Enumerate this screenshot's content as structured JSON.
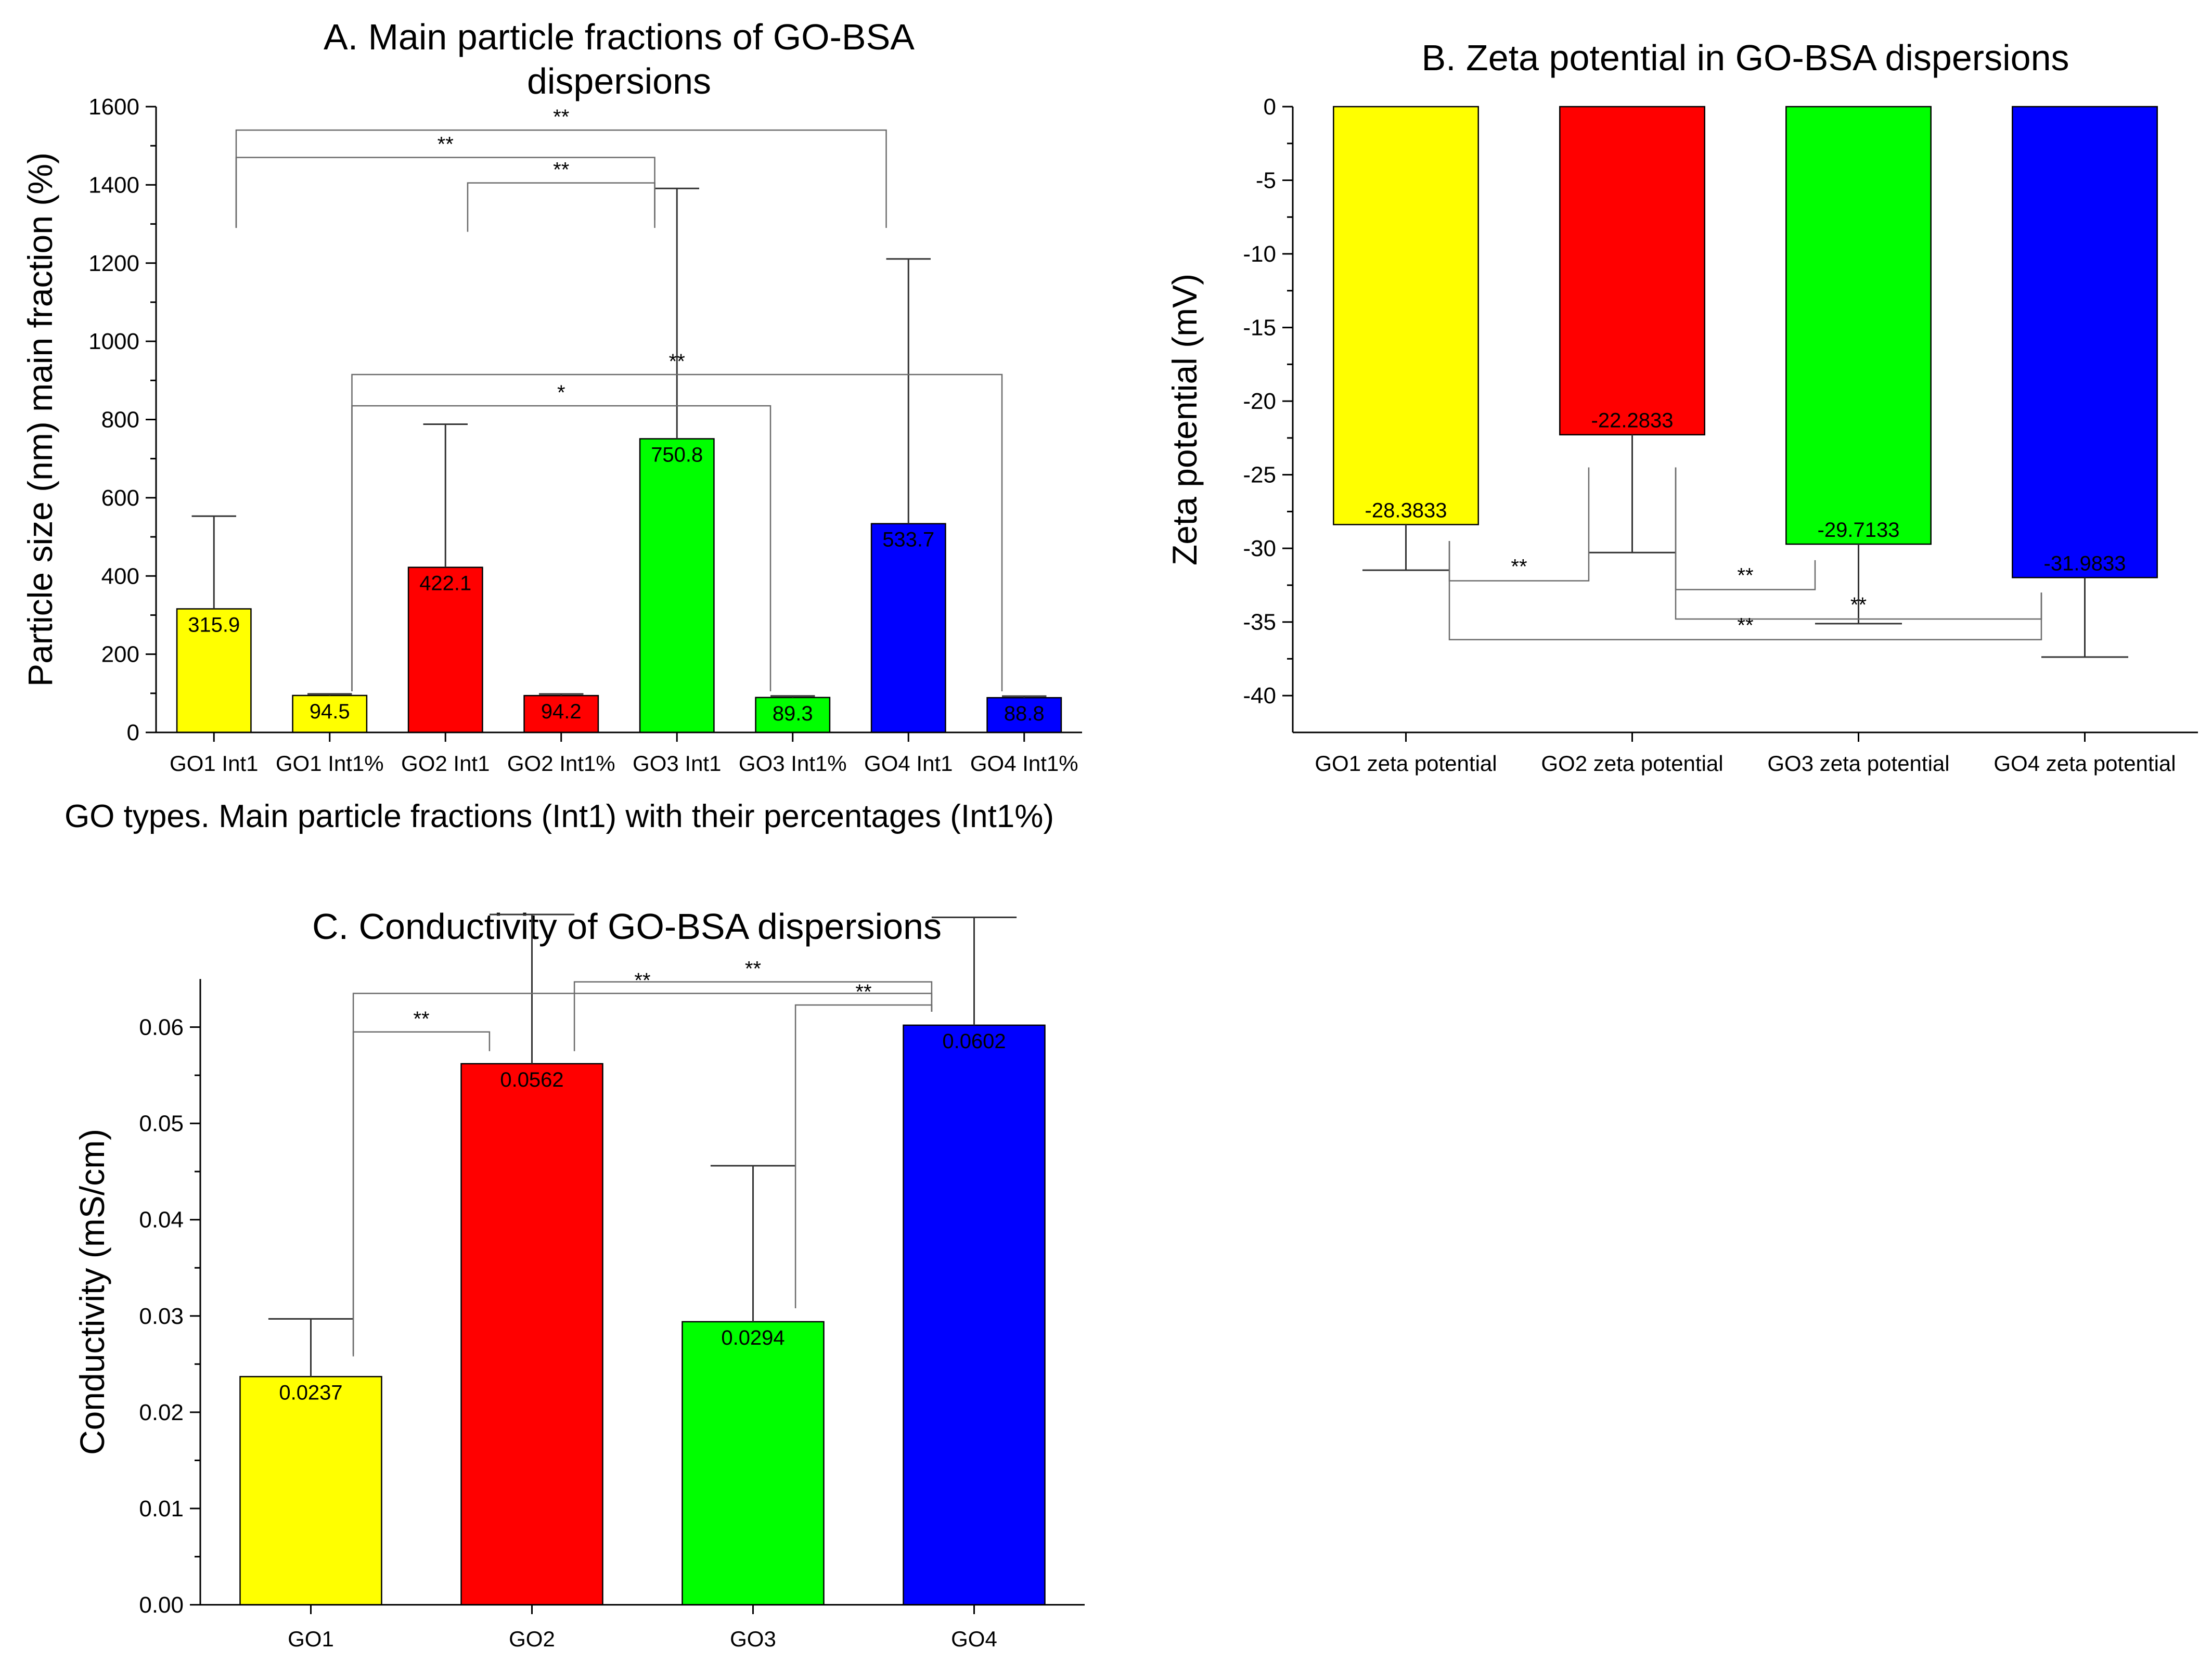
{
  "chart_data": [
    {
      "id": "A",
      "type": "bar",
      "title": "A. Main particle fractions of GO-BSA dispersions",
      "title_lines": [
        "A. Main particle fractions of GO-BSA",
        "dispersions"
      ],
      "ylabel": "Particle size (nm) main fraction (%)",
      "xlabel": "GO types. Main particle fractions (Int1) with their percentages (Int1%)",
      "ylim": [
        0,
        1600
      ],
      "yticks": [
        0,
        200,
        400,
        600,
        800,
        1000,
        1200,
        1400,
        1600
      ],
      "ytick_labels": [
        "0",
        "200",
        "400",
        "600",
        "800",
        "1000",
        "1200",
        "1400",
        "1600"
      ],
      "categories": [
        "GO1 Int1",
        "GO1 Int1%",
        "GO2 Int1",
        "GO2 Int1%",
        "GO3 Int1",
        "GO3 Int1%",
        "GO4 Int1",
        "GO4 Int1%"
      ],
      "values": [
        315.9,
        94.5,
        422.1,
        94.2,
        750.8,
        89.3,
        533.7,
        88.8
      ],
      "value_labels": [
        "315.9",
        "94.5",
        "422.1",
        "94.2",
        "750.8",
        "89.3",
        "533.7",
        "88.8"
      ],
      "errors": [
        237,
        4,
        366,
        4,
        640,
        4,
        677,
        4
      ],
      "colors": [
        "#ffff00",
        "#ffff00",
        "#ff0000",
        "#ff0000",
        "#00ff00",
        "#00ff00",
        "#0000ff",
        "#0000ff"
      ],
      "significance": [
        {
          "from": 0,
          "to": 6,
          "label": "**",
          "level": 1540,
          "from_end": 1290,
          "to_end": 1290
        },
        {
          "from": 0,
          "to": 4,
          "label": "**",
          "level": 1470,
          "from_end": 1290,
          "to_end": 1310
        },
        {
          "from": 2,
          "to": 4,
          "label": "**",
          "level": 1405,
          "from_end": 1280,
          "to_end": 1290
        },
        {
          "from": 1,
          "to": 7,
          "label": "**",
          "level": 915,
          "from_end": 105,
          "to_end": 105
        },
        {
          "from": 1,
          "to": 5,
          "label": "*",
          "level": 835,
          "from_end": 105,
          "to_end": 105
        }
      ]
    },
    {
      "id": "B",
      "type": "bar",
      "title": "B. Zeta potential in GO-BSA dispersions",
      "ylabel": "Zeta potential (mV)",
      "xlabel": "",
      "ylim": [
        -42.5,
        0
      ],
      "yticks": [
        0,
        -5,
        -10,
        -15,
        -20,
        -25,
        -30,
        -35,
        -40
      ],
      "ytick_labels": [
        "0",
        "-5",
        "-10",
        "-15",
        "-20",
        "-25",
        "-30",
        "-35",
        "-40"
      ],
      "categories": [
        "GO1 zeta potential",
        "GO2 zeta potential",
        "GO3 zeta potential",
        "GO4 zeta potential"
      ],
      "values": [
        -28.3833,
        -22.2833,
        -29.7133,
        -31.9833
      ],
      "value_labels": [
        "-28.3833",
        "-22.2833",
        "-29.7133",
        "-31.9833"
      ],
      "errors": [
        3.1,
        8.0,
        5.4,
        5.4
      ],
      "colors": [
        "#ffff00",
        "#ff0000",
        "#00ff00",
        "#0000ff"
      ],
      "significance": [
        {
          "from": 0,
          "to": 1,
          "label": "**",
          "level": -32.2,
          "from_end": -29.5,
          "to_end": -24.5
        },
        {
          "from": 1,
          "to": 2,
          "label": "**",
          "level": -32.8,
          "from_end": -24.5,
          "to_end": -30.8
        },
        {
          "from": 1,
          "to": 3,
          "label": "**",
          "level": -34.8,
          "from_end": -24.5,
          "to_end": -33.0
        },
        {
          "from": 0,
          "to": 3,
          "label": "**",
          "level": -36.2,
          "from_end": -29.5,
          "to_end": -33.0
        }
      ]
    },
    {
      "id": "C",
      "type": "bar",
      "title": "C. Conductivity of GO-BSA dispersions",
      "ylabel": "Conductivity (mS/cm)",
      "xlabel": "",
      "ylim": [
        0,
        0.065
      ],
      "yticks": [
        0,
        0.01,
        0.02,
        0.03,
        0.04,
        0.05,
        0.06
      ],
      "ytick_labels": [
        "0.00",
        "0.01",
        "0.02",
        "0.03",
        "0.04",
        "0.05",
        "0.06"
      ],
      "categories": [
        "GO1",
        "GO2",
        "GO3",
        "GO4"
      ],
      "values": [
        0.0237,
        0.0562,
        0.0294,
        0.0602
      ],
      "value_labels": [
        "0.0237",
        "0.0562",
        "0.0294",
        "0.0602"
      ],
      "errors": [
        0.006,
        0.0155,
        0.0162,
        0.0112
      ],
      "colors": [
        "#ffff00",
        "#ff0000",
        "#00ff00",
        "#0000ff"
      ],
      "significance": [
        {
          "from": 0,
          "to": 3,
          "label": "**",
          "level": 0.0635,
          "from_end": 0.0258,
          "to_end": 0.0616
        },
        {
          "from": 1,
          "to": 3,
          "label": "**",
          "level": 0.0647,
          "from_end": 0.0575,
          "to_end": 0.0616
        },
        {
          "from": 0,
          "to": 1,
          "label": "**",
          "level": 0.0595,
          "from_end": 0.026,
          "to_end": 0.0575
        },
        {
          "from": 2,
          "to": 3,
          "label": "**",
          "level": 0.0623,
          "from_end": 0.0308,
          "to_end": 0.0616
        }
      ]
    }
  ]
}
